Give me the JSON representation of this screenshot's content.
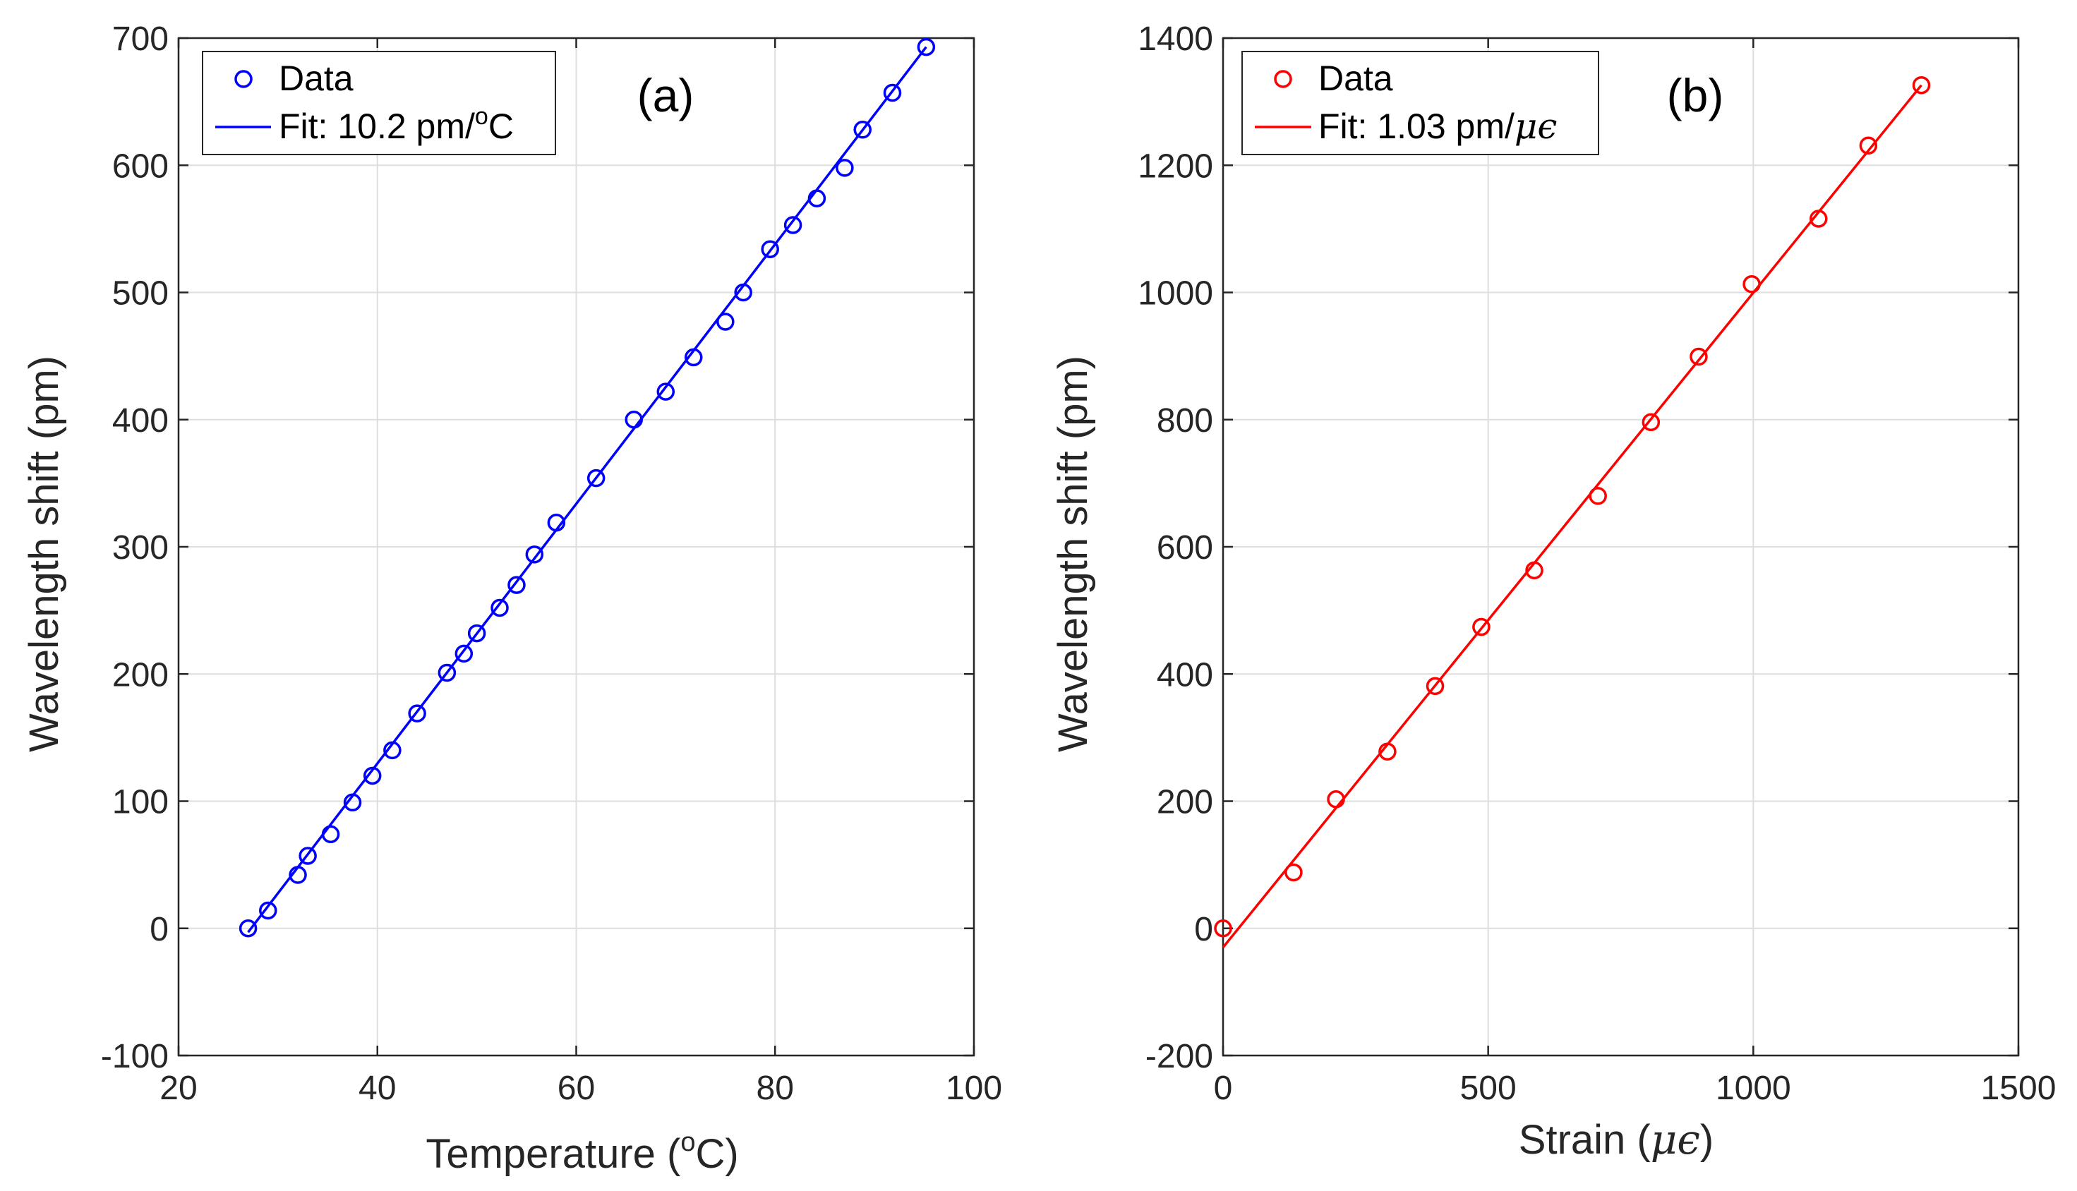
{
  "chart_data": [
    {
      "type": "scatter",
      "panel_label": "(a)",
      "xlabel_pre": "Temperature (",
      "xlabel_sup": "o",
      "xlabel_post": "C)",
      "ylabel": "Wavelength shift (pm)",
      "xlim": [
        20,
        100
      ],
      "ylim": [
        -100,
        700
      ],
      "xticks": [
        20,
        40,
        60,
        80,
        100
      ],
      "yticks": [
        -100,
        0,
        100,
        200,
        300,
        400,
        500,
        600,
        700
      ],
      "grid": true,
      "legend_position": "top-left",
      "color": "#0000ff",
      "legend": {
        "data_label": "Data",
        "fit_label_pre": "Fit: 10.2 pm/",
        "fit_label_sup": "o",
        "fit_label_post": "C"
      },
      "series": [
        {
          "name": "Data",
          "x": [
            27,
            29,
            32,
            33,
            35.3,
            37.5,
            39.5,
            41.5,
            44,
            47,
            48.7,
            50,
            52.3,
            54,
            55.8,
            58,
            62,
            65.8,
            69,
            71.8,
            75,
            76.8,
            79.5,
            81.8,
            84.2,
            87,
            88.8,
            91.8,
            95.2
          ],
          "y": [
            0,
            14,
            42,
            57,
            74,
            99,
            120,
            140,
            169,
            201,
            216,
            232,
            252,
            270,
            294,
            319,
            354,
            400,
            422,
            449,
            477,
            500,
            534,
            553,
            574,
            598,
            628,
            657,
            693
          ]
        },
        {
          "name": "Fit",
          "type": "line",
          "x": [
            27,
            95.2
          ],
          "y": [
            -3,
            693
          ]
        }
      ]
    },
    {
      "type": "scatter",
      "panel_label": "(b)",
      "xlabel_pre": "Strain (",
      "xlabel_math": "μϵ",
      "xlabel_post": ")",
      "ylabel": "Wavelength shift (pm)",
      "xlim": [
        0,
        1500
      ],
      "ylim": [
        -200,
        1400
      ],
      "xticks": [
        0,
        500,
        1000,
        1500
      ],
      "yticks": [
        -200,
        0,
        200,
        400,
        600,
        800,
        1000,
        1200,
        1400
      ],
      "grid": true,
      "legend_position": "top-left",
      "color": "#ff0000",
      "legend": {
        "data_label": "Data",
        "fit_label_pre": "Fit: 1.03 pm/",
        "fit_label_math": "μϵ"
      },
      "series": [
        {
          "name": "Data",
          "x": [
            0,
            133,
            213,
            310,
            400,
            487,
            587,
            707,
            807,
            897,
            997,
            1123,
            1217,
            1317
          ],
          "y": [
            0,
            88,
            203,
            278,
            381,
            474,
            563,
            680,
            796,
            899,
            1013,
            1116,
            1231,
            1326
          ]
        },
        {
          "name": "Fit",
          "type": "line",
          "x": [
            0,
            1317
          ],
          "y": [
            -30,
            1326
          ]
        }
      ]
    }
  ]
}
